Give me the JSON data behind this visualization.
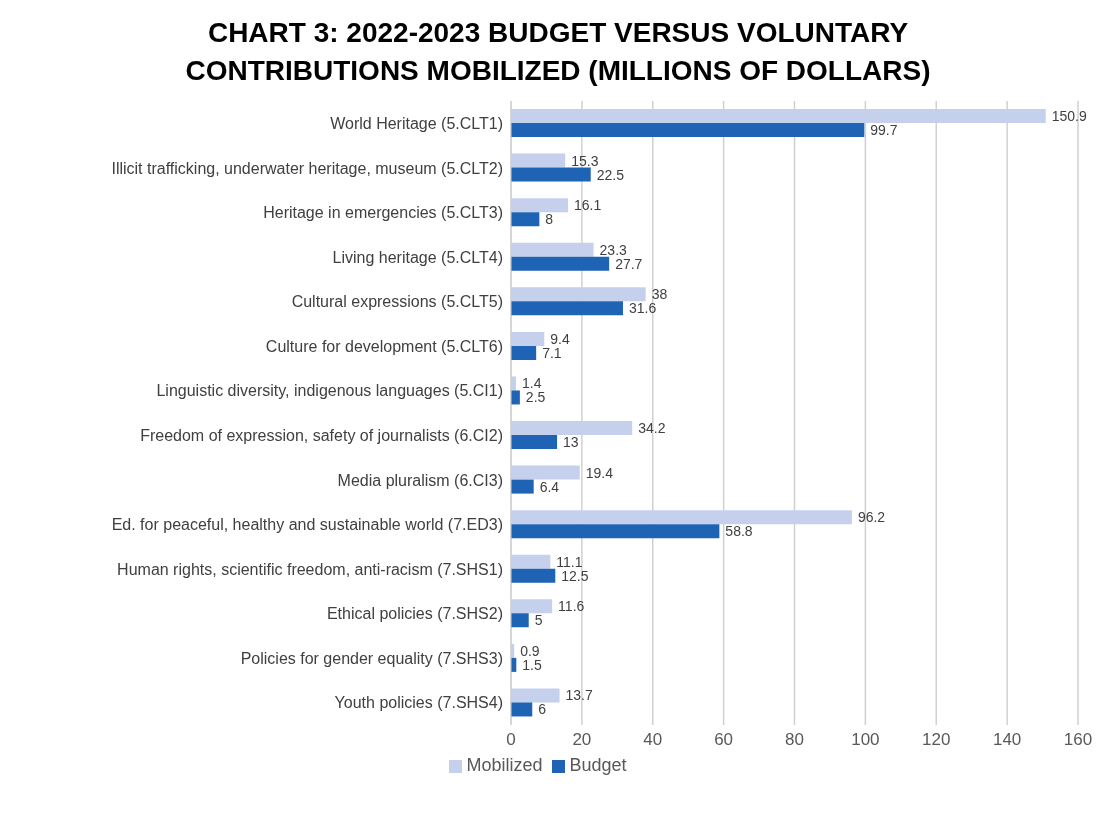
{
  "chart_data": {
    "type": "bar",
    "orientation": "horizontal",
    "title": "CHART 3: 2022-2023 BUDGET VERSUS VOLUNTARY CONTRIBUTIONS MOBILIZED (MILLIONS OF DOLLARS)",
    "categories": [
      "World Heritage (5.CLT1)",
      "Illicit trafficking, underwater heritage, museum (5.CLT2)",
      "Heritage in emergencies (5.CLT3)",
      "Living heritage (5.CLT4)",
      "Cultural expressions (5.CLT5)",
      "Culture for development (5.CLT6)",
      "Linguistic diversity, indigenous languages (5.CI1)",
      "Freedom of expression, safety of journalists (6.CI2)",
      "Media pluralism (6.CI3)",
      "Ed. for peaceful, healthy and sustainable world (7.ED3)",
      "Human rights, scientific freedom, anti-racism (7.SHS1)",
      "Ethical policies (7.SHS2)",
      "Policies for gender equality (7.SHS3)",
      "Youth policies (7.SHS4)"
    ],
    "series": [
      {
        "name": "Mobilized",
        "color": "#c5d0ec",
        "values": [
          150.9,
          15.3,
          16.1,
          23.3,
          38,
          9.4,
          1.4,
          34.2,
          19.4,
          96.2,
          11.1,
          11.6,
          0.9,
          13.7
        ]
      },
      {
        "name": "Budget",
        "color": "#1f63b5",
        "values": [
          99.7,
          22.5,
          8,
          27.7,
          31.6,
          7.1,
          2.5,
          13,
          6.4,
          58.8,
          12.5,
          5,
          1.5,
          6
        ]
      }
    ],
    "xlim": [
      0,
      160
    ],
    "xticks": [
      0,
      20,
      40,
      60,
      80,
      100,
      120,
      140,
      160
    ],
    "grid": "x",
    "legend": "bottom",
    "data_labels": true
  }
}
